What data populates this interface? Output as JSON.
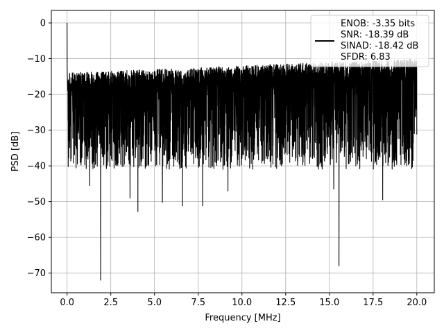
{
  "chart_data": {
    "type": "line",
    "title": "",
    "xlabel": "Frequency [MHz]",
    "ylabel": "PSD [dB]",
    "xlim": [
      -0.9,
      21.0
    ],
    "ylim": [
      -75.5,
      3.5
    ],
    "xticks": [
      0.0,
      2.5,
      5.0,
      7.5,
      10.0,
      12.5,
      15.0,
      17.5,
      20.0
    ],
    "xtick_labels": [
      "0.0",
      "2.5",
      "5.0",
      "7.5",
      "10.0",
      "12.5",
      "15.0",
      "17.5",
      "20.0"
    ],
    "yticks": [
      0,
      -10,
      -20,
      -30,
      -40,
      -50,
      -60,
      -70
    ],
    "ytick_labels": [
      "0",
      "−10",
      "−20",
      "−30",
      "−40",
      "−50",
      "−60",
      "−70"
    ],
    "grid": true,
    "legend_position": "top-right",
    "series": [
      {
        "color": "#000000",
        "noise_band_db": [
          -35,
          -14
        ],
        "peaks": [
          {
            "x": 0.0,
            "y": 0.0
          },
          {
            "x": 1.92,
            "y": -72.0
          },
          {
            "x": 15.55,
            "y": -68.0
          },
          {
            "x": 1.3,
            "y": -45.5
          },
          {
            "x": 3.6,
            "y": -49.0
          },
          {
            "x": 4.05,
            "y": -52.8
          },
          {
            "x": 5.45,
            "y": -50.2
          },
          {
            "x": 6.6,
            "y": -51.2
          },
          {
            "x": 7.75,
            "y": -51.2
          },
          {
            "x": 9.2,
            "y": -47.0
          },
          {
            "x": 15.25,
            "y": -46.5
          },
          {
            "x": 18.05,
            "y": -49.5
          }
        ]
      }
    ],
    "legend": {
      "lines": [
        "ENOB: -3.35 bits",
        "SNR: -18.39 dB",
        "SINAD: -18.42 dB",
        "SFDR: 6.83"
      ]
    }
  }
}
